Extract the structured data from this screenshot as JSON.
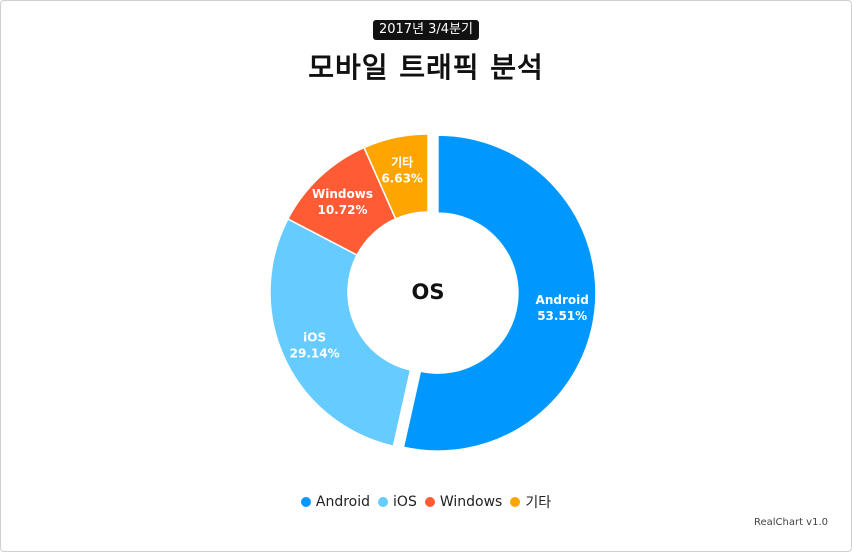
{
  "chart_data": {
    "type": "pie",
    "subtitle": "2017년 3/4분기",
    "title": "모바일 트래픽 분석",
    "center_label": "OS",
    "categories": [
      "Android",
      "iOS",
      "Windows",
      "기타"
    ],
    "values": [
      53.51,
      29.14,
      10.72,
      6.63
    ],
    "value_labels": [
      "53.51%",
      "29.14%",
      "10.72%",
      "6.63%"
    ],
    "colors": [
      "#0098ff",
      "#66ccff",
      "#ff5c35",
      "#ffa500"
    ],
    "exploded": "Android",
    "legend": "bottom"
  },
  "credit": "RealChart v1.0"
}
